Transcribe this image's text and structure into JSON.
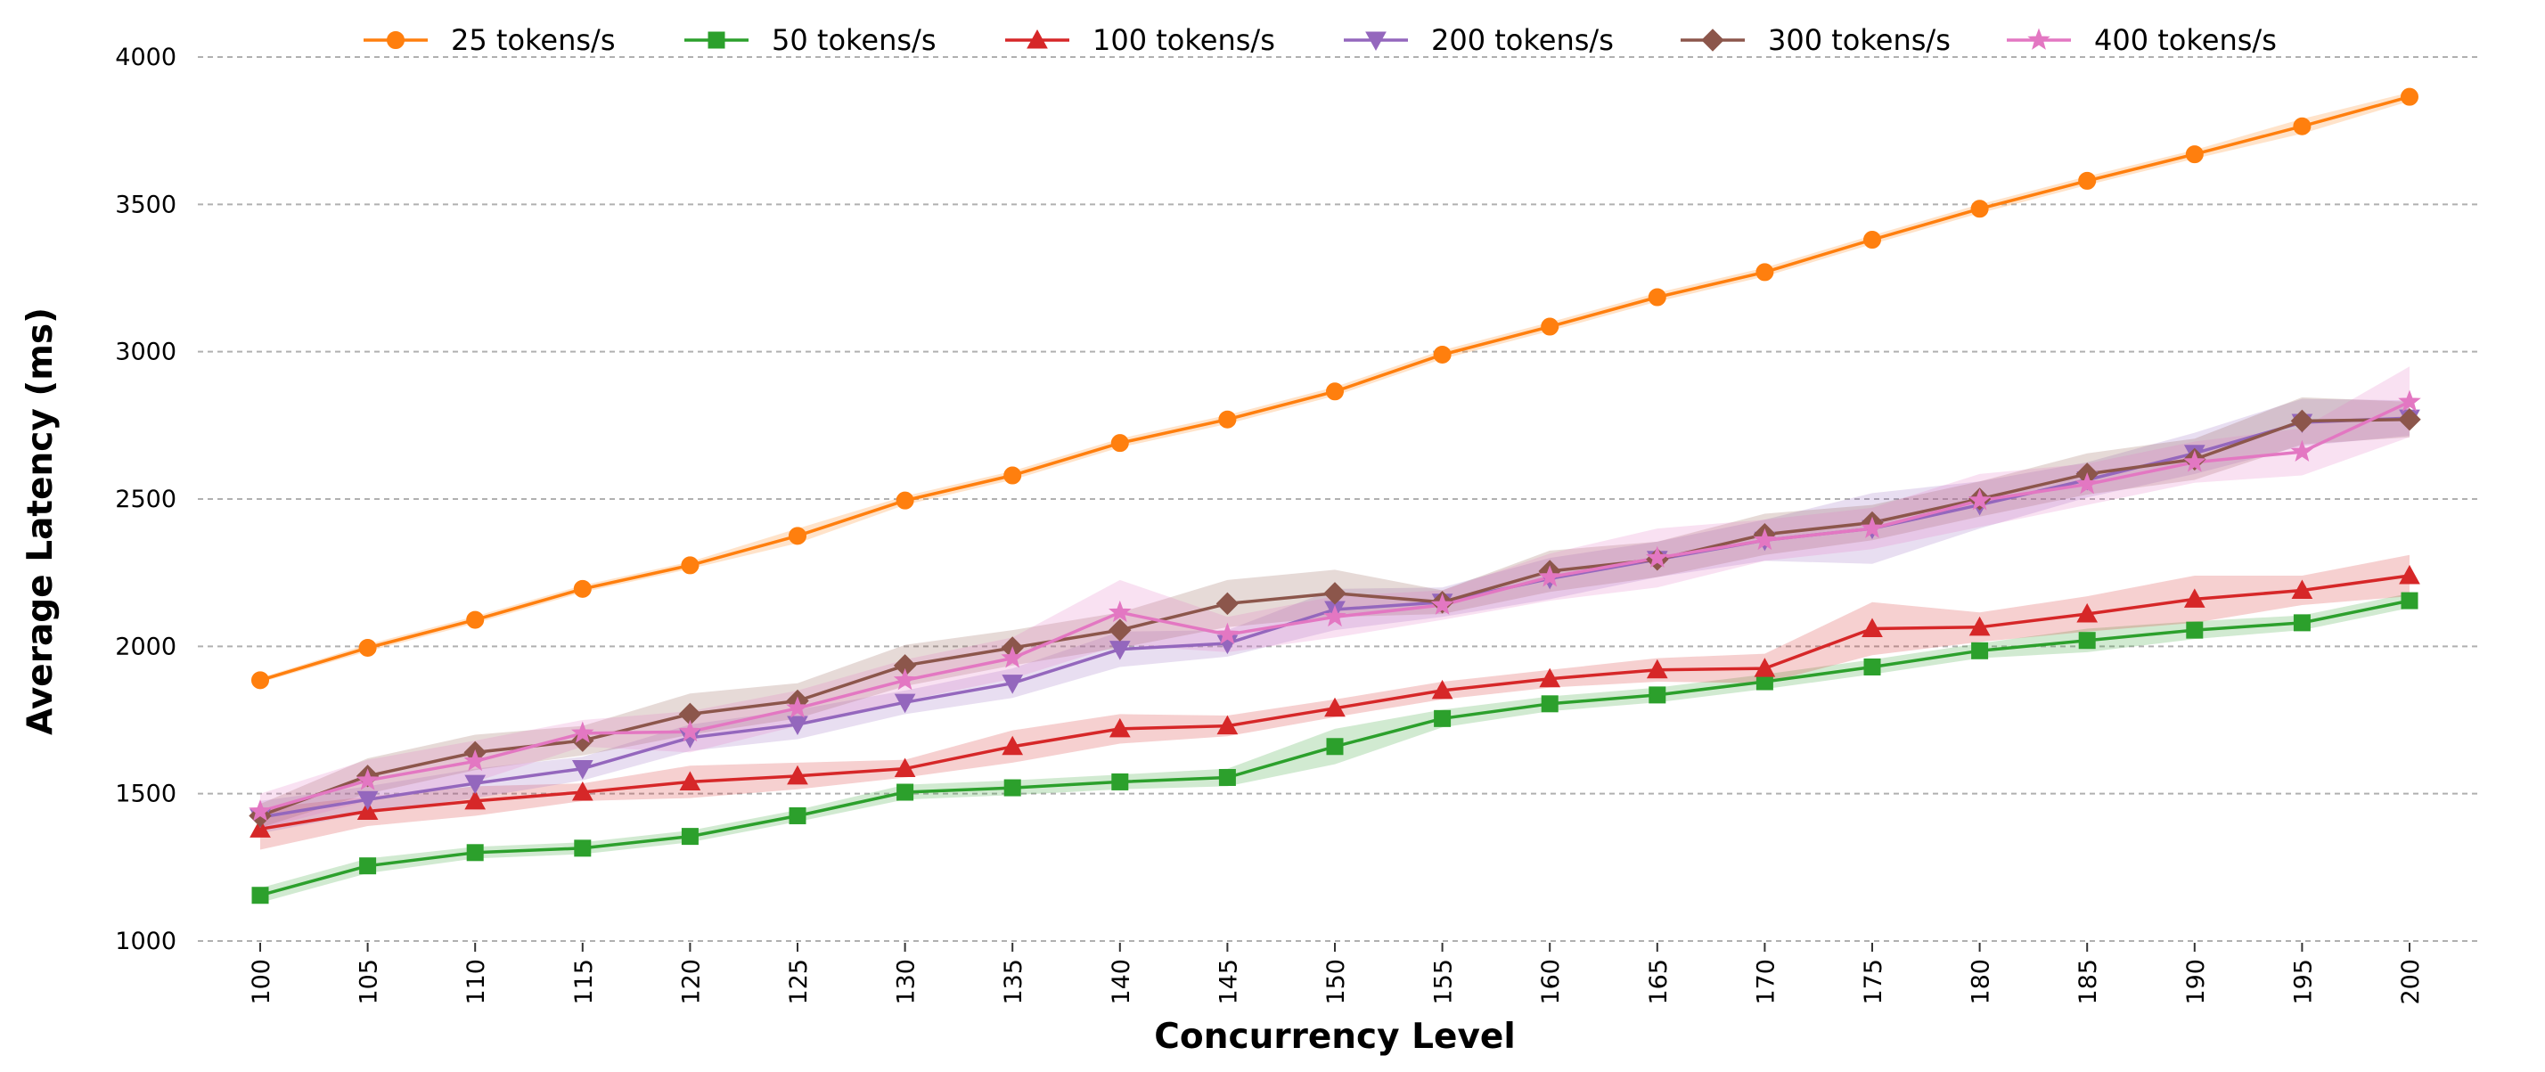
{
  "chart_data": {
    "type": "line",
    "title": "",
    "xlabel": "Concurrency Level",
    "ylabel": "Average Latency (ms)",
    "x": [
      100,
      105,
      110,
      115,
      120,
      125,
      130,
      135,
      140,
      145,
      150,
      155,
      160,
      165,
      170,
      175,
      180,
      185,
      190,
      195,
      200
    ],
    "x_tick_labels": [
      "100",
      "105",
      "110",
      "115",
      "120",
      "125",
      "130",
      "135",
      "140",
      "145",
      "150",
      "155",
      "160",
      "165",
      "170",
      "175",
      "180",
      "185",
      "190",
      "195",
      "200"
    ],
    "ylim": [
      1000,
      4000
    ],
    "y_ticks": [
      1000,
      1500,
      2000,
      2500,
      3000,
      3500,
      4000
    ],
    "y_tick_labels": [
      "1000",
      "1500",
      "2000",
      "2500",
      "3000",
      "3500",
      "4000"
    ],
    "grid": "horizontal dashed",
    "legend_position": "top-center",
    "series": [
      {
        "name": "25 tokens/s",
        "color": "#ff7f0e",
        "marker": "circle",
        "values": [
          1885,
          1995,
          2090,
          2195,
          2275,
          2375,
          2495,
          2580,
          2690,
          2770,
          2865,
          2990,
          3085,
          3185,
          3270,
          3380,
          3485,
          3580,
          3670,
          3765,
          3865
        ],
        "band": [
          8,
          12,
          12,
          12,
          12,
          25,
          15,
          15,
          15,
          15,
          15,
          15,
          15,
          15,
          15,
          15,
          15,
          15,
          15,
          25,
          15
        ]
      },
      {
        "name": "50 tokens/s",
        "color": "#2ca02c",
        "marker": "square",
        "values": [
          1155,
          1255,
          1300,
          1315,
          1355,
          1425,
          1505,
          1520,
          1540,
          1555,
          1660,
          1755,
          1805,
          1835,
          1880,
          1930,
          1985,
          2020,
          2055,
          2080,
          2155
        ],
        "band": [
          25,
          25,
          20,
          20,
          20,
          20,
          25,
          25,
          25,
          30,
          60,
          30,
          25,
          25,
          25,
          25,
          25,
          40,
          30,
          25,
          25
        ]
      },
      {
        "name": "100 tokens/s",
        "color": "#d62728",
        "marker": "triangle-up",
        "values": [
          1380,
          1440,
          1475,
          1505,
          1540,
          1560,
          1585,
          1660,
          1720,
          1730,
          1790,
          1850,
          1890,
          1920,
          1925,
          2060,
          2065,
          2110,
          2160,
          2190,
          2240
        ],
        "band": [
          70,
          50,
          50,
          30,
          55,
          45,
          30,
          55,
          50,
          35,
          30,
          30,
          30,
          40,
          50,
          90,
          50,
          60,
          80,
          50,
          70
        ]
      },
      {
        "name": "200 tokens/s",
        "color": "#9467bd",
        "marker": "triangle-down",
        "values": [
          1420,
          1480,
          1535,
          1585,
          1690,
          1735,
          1810,
          1875,
          1990,
          2010,
          2125,
          2150,
          2230,
          2295,
          2360,
          2400,
          2480,
          2565,
          2655,
          2760,
          2775
        ],
        "band": [
          55,
          45,
          50,
          40,
          45,
          50,
          40,
          50,
          60,
          45,
          70,
          50,
          70,
          60,
          70,
          120,
          80,
          60,
          70,
          80,
          60
        ]
      },
      {
        "name": "300 tokens/s",
        "color": "#8c564b",
        "marker": "diamond",
        "values": [
          1425,
          1560,
          1640,
          1680,
          1770,
          1815,
          1935,
          1995,
          2055,
          2145,
          2180,
          2150,
          2255,
          2295,
          2380,
          2420,
          2500,
          2585,
          2635,
          2765,
          2770
        ],
        "band": [
          40,
          60,
          60,
          50,
          70,
          60,
          70,
          60,
          60,
          80,
          80,
          40,
          70,
          60,
          70,
          60,
          60,
          70,
          70,
          80,
          60
        ]
      },
      {
        "name": "400 tokens/s",
        "color": "#e377c2",
        "marker": "star",
        "values": [
          1440,
          1545,
          1610,
          1705,
          1710,
          1790,
          1885,
          1960,
          2115,
          2040,
          2100,
          2140,
          2235,
          2300,
          2360,
          2400,
          2495,
          2550,
          2625,
          2660,
          2830
        ],
        "band": [
          60,
          70,
          70,
          45,
          70,
          60,
          70,
          70,
          110,
          60,
          70,
          50,
          80,
          100,
          70,
          70,
          90,
          70,
          70,
          80,
          120
        ]
      }
    ]
  }
}
